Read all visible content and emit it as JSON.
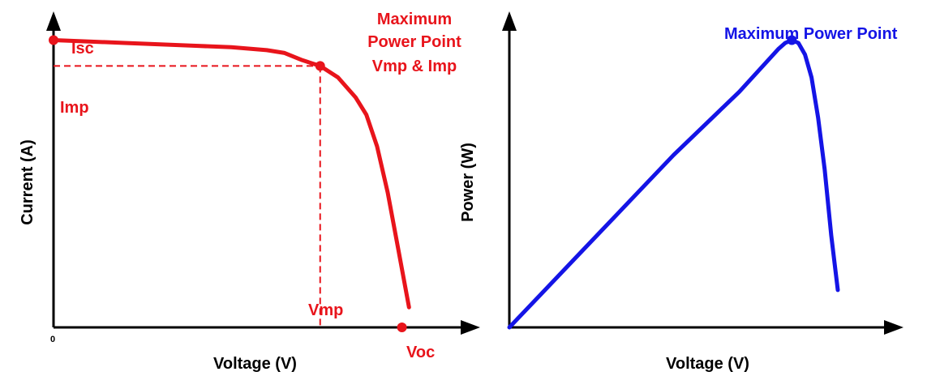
{
  "colors": {
    "iv_curve": "#e8141b",
    "pv_curve": "#1414e6",
    "axis": "#000000"
  },
  "chart_data": [
    {
      "type": "line",
      "xlabel": "Voltage (V)",
      "ylabel": "Current  (A)",
      "origin_label": "0",
      "xlim": [
        0,
        1.2
      ],
      "ylim": [
        0,
        1.1
      ],
      "series": [
        {
          "x": [
            0,
            0.1,
            0.2,
            0.3,
            0.4,
            0.5,
            0.6,
            0.65,
            0.7,
            0.75,
            0.8,
            0.85,
            0.88,
            0.91,
            0.94,
            0.97,
            1.0
          ],
          "y": [
            1.0,
            0.995,
            0.99,
            0.985,
            0.98,
            0.975,
            0.965,
            0.955,
            0.93,
            0.91,
            0.87,
            0.8,
            0.74,
            0.63,
            0.47,
            0.27,
            0.07
          ]
        }
      ],
      "annotations": [
        {
          "id": "isc",
          "text": "Isc",
          "x": 0,
          "y": 1.0
        },
        {
          "id": "imp",
          "text": "Imp",
          "x": 0,
          "y": 0.91
        },
        {
          "id": "vmp",
          "text": "Vmp",
          "x": 0.75,
          "y": 0
        },
        {
          "id": "voc",
          "text": "Voc",
          "x": 0.98,
          "y": 0
        },
        {
          "id": "mpp",
          "text": [
            "Maximum",
            "Power Point",
            "Vmp & Imp"
          ],
          "x": 0.75,
          "y": 0.91
        }
      ]
    },
    {
      "type": "line",
      "xlabel": "Voltage (V)",
      "ylabel": "Power (W)",
      "xlim": [
        0,
        1.2
      ],
      "ylim": [
        0,
        1.1
      ],
      "series": [
        {
          "x": [
            0,
            0.1,
            0.2,
            0.3,
            0.4,
            0.5,
            0.6,
            0.7,
            0.78,
            0.82,
            0.84,
            0.86,
            0.88,
            0.9,
            0.92,
            0.94,
            0.96,
            0.98,
            1.0
          ],
          "y": [
            0,
            0.12,
            0.24,
            0.36,
            0.48,
            0.6,
            0.71,
            0.82,
            0.92,
            0.97,
            0.99,
            1.0,
            0.99,
            0.95,
            0.87,
            0.73,
            0.55,
            0.32,
            0.13
          ]
        }
      ],
      "annotations": [
        {
          "id": "mpp",
          "text": "Maximum Power Point",
          "x": 0.86,
          "y": 1.0
        }
      ]
    }
  ]
}
